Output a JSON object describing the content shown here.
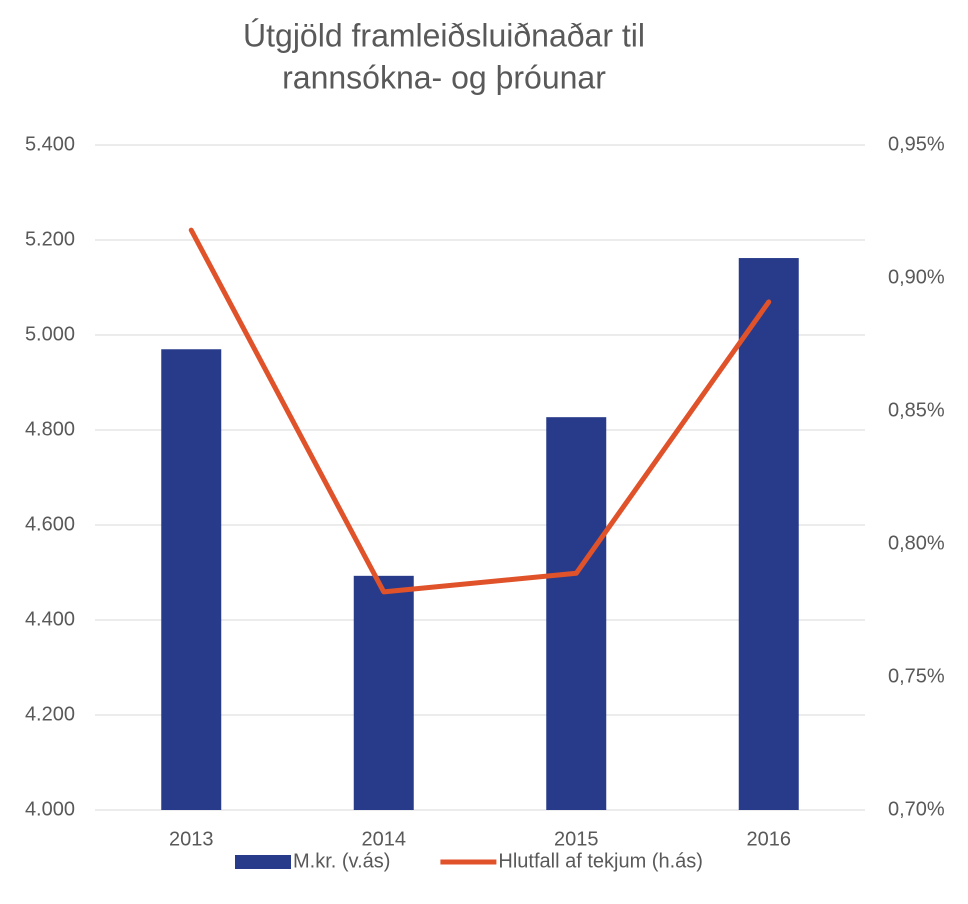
{
  "chart_data": {
    "type": "bar_line",
    "title": [
      "Útgjöld framleiðsluiðnaðar til",
      "rannsókna- og þróunar"
    ],
    "categories": [
      "2013",
      "2014",
      "2015",
      "2016"
    ],
    "series": [
      {
        "name": "M.kr. (v.ás)",
        "type": "bar",
        "color": "#283b8a",
        "values": [
          4970,
          4493,
          4827,
          5162
        ]
      },
      {
        "name": "Hlutfall af tekjum (h.ás)",
        "type": "line",
        "axis": "y2",
        "color": "#e0522a",
        "values": [
          0.918,
          0.782,
          0.789,
          0.891
        ]
      }
    ],
    "ylim": [
      4000,
      5400
    ],
    "yticks": [
      {
        "value": 4000,
        "label": "4.000"
      },
      {
        "value": 4200,
        "label": "4.200"
      },
      {
        "value": 4400,
        "label": "4.400"
      },
      {
        "value": 4600,
        "label": "4.600"
      },
      {
        "value": 4800,
        "label": "4.800"
      },
      {
        "value": 5000,
        "label": "5.000"
      },
      {
        "value": 5200,
        "label": "5.200"
      },
      {
        "value": 5400,
        "label": "5.400"
      }
    ],
    "y2lim": [
      0.7,
      0.95
    ],
    "y2ticks": [
      {
        "value": 0.7,
        "label": "0,70%"
      },
      {
        "value": 0.75,
        "label": "0,75%"
      },
      {
        "value": 0.8,
        "label": "0,80%"
      },
      {
        "value": 0.85,
        "label": "0,85%"
      },
      {
        "value": 0.9,
        "label": "0,90%"
      },
      {
        "value": 0.95,
        "label": "0,95%"
      }
    ],
    "grid": true,
    "legend": "bottom"
  }
}
